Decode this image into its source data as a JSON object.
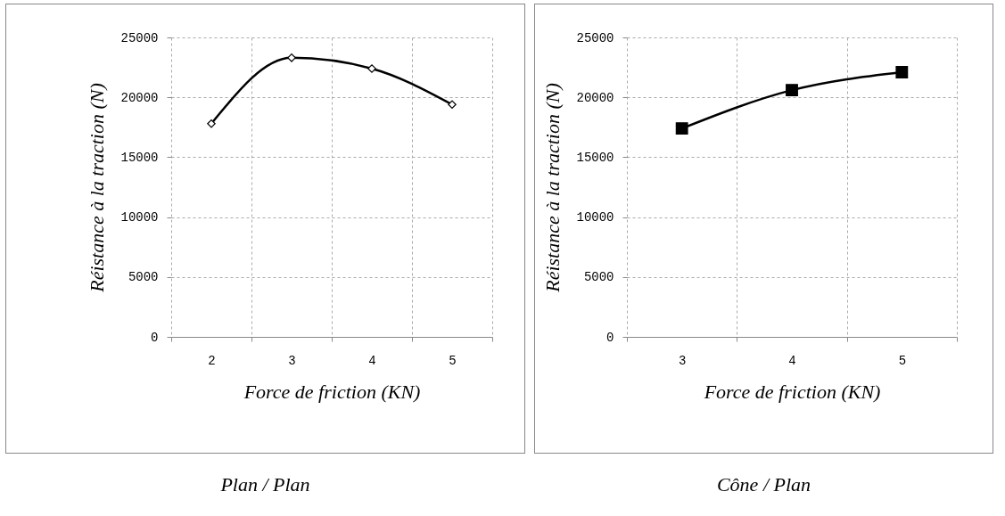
{
  "chart_data": [
    {
      "type": "line",
      "xlabel": "Force de friction (KN)",
      "ylabel": "Réistance à la traction (N)",
      "categories": [
        "2",
        "3",
        "4",
        "5"
      ],
      "series": [
        {
          "color": "#000000",
          "values": [
            17800,
            23300,
            22400,
            19400
          ]
        }
      ],
      "ylim": [
        0,
        25000
      ],
      "yticks": [
        0,
        5000,
        10000,
        15000,
        20000,
        25000
      ],
      "grid": true,
      "marker": "diamond",
      "annotations": [
        "Plan / Plan"
      ]
    },
    {
      "type": "line",
      "xlabel": "Force de friction (KN)",
      "ylabel": "Réistance à la traction (N)",
      "categories": [
        "3",
        "4",
        "5"
      ],
      "series": [
        {
          "color": "#000000",
          "values": [
            17400,
            20600,
            22100
          ]
        }
      ],
      "ylim": [
        0,
        25000
      ],
      "yticks": [
        0,
        5000,
        10000,
        15000,
        20000,
        25000
      ],
      "grid": true,
      "marker": "square",
      "annotations": [
        "Cône / Plan"
      ]
    }
  ]
}
